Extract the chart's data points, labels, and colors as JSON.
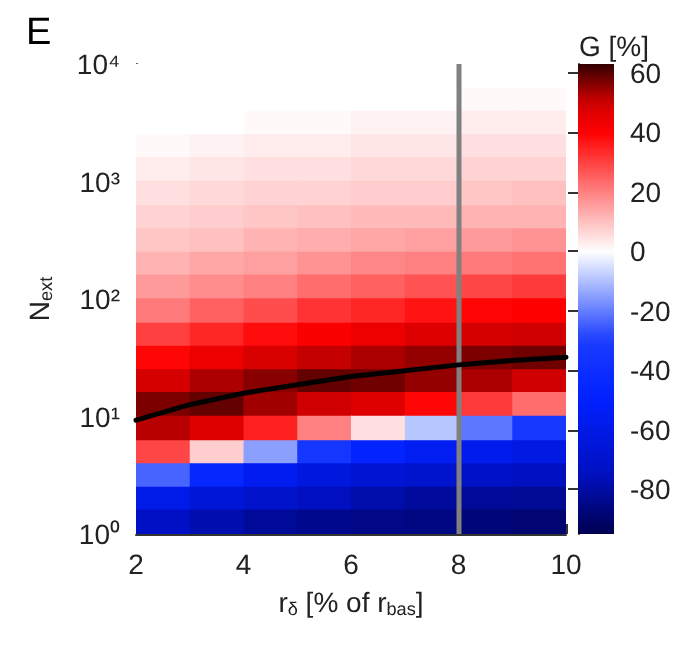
{
  "chart_data": {
    "type": "heatmap",
    "title": "E",
    "xlabel": "r$_{δ}$ [% of r$_{bas}$]",
    "ylabel": "N$_{ext}$",
    "clabel": "G [%]",
    "x": [
      2.5,
      3.5,
      4.5,
      5.5,
      6.5,
      7.5,
      8.5,
      9.5
    ],
    "y": [
      7900,
      5000,
      3200,
      2000,
      1300,
      790,
      500,
      320,
      200,
      130,
      79,
      50,
      32,
      20,
      13,
      7.9,
      5,
      3.2,
      2,
      1.3
    ],
    "cells": [
      [
        0,
        0,
        0,
        0,
        0,
        0,
        0,
        0
      ],
      [
        0,
        0,
        0,
        0,
        0,
        0,
        1,
        1
      ],
      [
        0,
        0,
        1,
        1,
        2,
        2,
        3,
        3
      ],
      [
        1,
        2,
        3,
        3,
        4,
        4,
        5,
        5
      ],
      [
        3,
        4,
        5,
        5,
        6,
        6,
        7,
        7
      ],
      [
        5,
        6,
        7,
        7,
        8,
        8,
        9,
        10
      ],
      [
        7,
        8,
        9,
        10,
        11,
        11,
        12,
        12
      ],
      [
        9,
        10,
        12,
        13,
        14,
        15,
        16,
        17
      ],
      [
        12,
        14,
        15,
        17,
        19,
        20,
        21,
        22
      ],
      [
        16,
        18,
        20,
        23,
        25,
        27,
        29,
        31
      ],
      [
        21,
        25,
        28,
        32,
        34,
        37,
        39,
        40
      ],
      [
        30,
        34,
        38,
        41,
        44,
        47,
        49,
        50
      ],
      [
        39,
        44,
        48,
        51,
        53,
        55,
        57,
        58
      ],
      [
        49,
        53,
        56,
        59,
        58,
        55,
        53,
        50
      ],
      [
        57,
        59,
        54,
        50,
        47,
        39,
        31,
        23
      ],
      [
        52,
        47,
        35,
        20,
        5,
        -9,
        -21,
        -32
      ],
      [
        29,
        8,
        -15,
        -34,
        -48,
        -55,
        -58,
        -61
      ],
      [
        -24,
        -45,
        -56,
        -63,
        -67,
        -70,
        -72,
        -75
      ],
      [
        -59,
        -66,
        -71,
        -75,
        -79,
        -81,
        -82,
        -83
      ],
      [
        -73,
        -78,
        -82,
        -84,
        -85,
        -86,
        -88,
        -89
      ]
    ],
    "series": [
      {
        "type": "line",
        "color": "#000000",
        "x": [
          2,
          3,
          4,
          5,
          6,
          7,
          8,
          9,
          10
        ],
        "values": [
          9.3,
          12.6,
          15.8,
          18.6,
          21.9,
          24.5,
          27.5,
          30,
          32
        ]
      }
    ],
    "xlim": [
      2,
      10
    ],
    "xticks": [
      2,
      4,
      6,
      8,
      10
    ],
    "ylim": [
      1,
      10000
    ],
    "yticks": [
      {
        "value": 1,
        "label": "10⁰"
      },
      {
        "value": 10,
        "label": "10¹"
      },
      {
        "value": 100,
        "label": "10²"
      },
      {
        "value": 1000,
        "label": "10³"
      },
      {
        "value": 10000,
        "label": "10⁴"
      }
    ],
    "log": "y",
    "clim": [
      -95,
      63
    ],
    "cticks": [
      -80,
      -60,
      -40,
      -20,
      0,
      20,
      40,
      60
    ],
    "ref_lines": [
      {
        "axis": "x",
        "value": 8,
        "color": "#808080"
      }
    ]
  }
}
